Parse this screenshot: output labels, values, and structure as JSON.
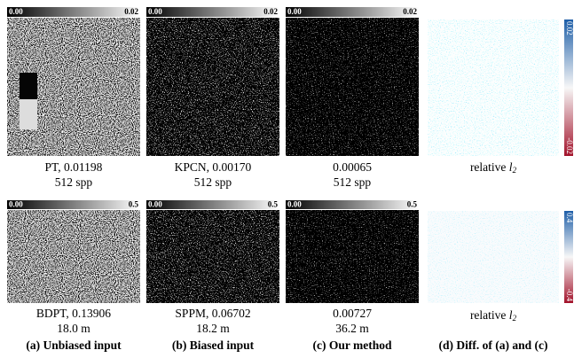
{
  "rows": [
    {
      "colorbar": {
        "min": "0.00",
        "max": "0.02"
      },
      "panels": [
        {
          "caption": "PT, 0.01198",
          "detail": "512 spp"
        },
        {
          "caption": "KPCN, 0.00170",
          "detail": "512 spp"
        },
        {
          "caption": "0.00065",
          "detail": "512 spp"
        }
      ],
      "diff": {
        "caption": "relative",
        "symbol": "l",
        "subscript": "2",
        "scale_max": "0.02",
        "scale_min": "-0.02"
      }
    },
    {
      "colorbar": {
        "min": "0.00",
        "max": "0.5"
      },
      "panels": [
        {
          "caption": "BDPT, 0.13906",
          "detail": "18.0 m"
        },
        {
          "caption": "SPPM, 0.06702",
          "detail": "18.2 m"
        },
        {
          "caption": "0.00727",
          "detail": "36.2 m"
        }
      ],
      "diff": {
        "caption": "relative",
        "symbol": "l",
        "subscript": "2",
        "scale_max": "0.4",
        "scale_min": "-0.4"
      }
    }
  ],
  "labels": [
    "(a) Unbiased input",
    "(b) Biased input",
    "(c) Our method",
    "(d) Diff. of (a) and (c)"
  ]
}
